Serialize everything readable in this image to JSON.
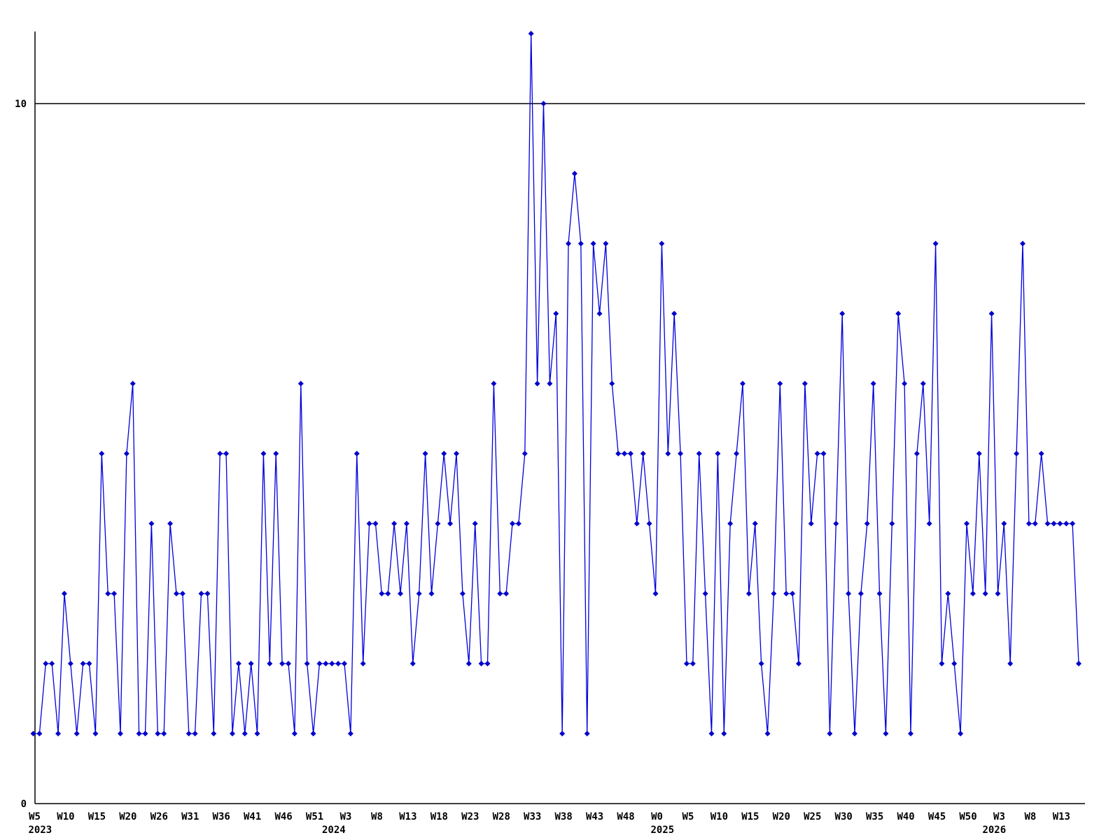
{
  "chart_data": {
    "type": "line",
    "title": "",
    "legend": null,
    "grid": "single horizontal gridline at y=10",
    "legend_position": "none",
    "line_color": "#0000dd",
    "marker_color": "#0000cc",
    "marker_shape": "diamond",
    "axis_color": "#000000",
    "ylim": [
      0,
      11.6
    ],
    "ylabel": "",
    "xlabel": "",
    "y_ticks": [
      {
        "label": "0",
        "value": 0
      },
      {
        "label": "10",
        "value": 10
      }
    ],
    "points_per_tick": 5,
    "x_tick_labels": [
      "W5",
      "W10",
      "W15",
      "W20",
      "W26",
      "W31",
      "W36",
      "W41",
      "W46",
      "W51",
      "W3",
      "W8",
      "W13",
      "W18",
      "W23",
      "W28",
      "W33",
      "W38",
      "W43",
      "W48",
      "W0",
      "W5",
      "W10",
      "W15",
      "W20",
      "W25",
      "W30",
      "W35",
      "W40",
      "W45",
      "W50",
      "W3",
      "W8",
      "W13"
    ],
    "year_labels": [
      {
        "label": "2023",
        "tick_index": 0,
        "dx": -7
      },
      {
        "label": "2024",
        "tick_index": 10,
        "dx": -32
      },
      {
        "label": "2025",
        "tick_index": 20,
        "dx": -7
      },
      {
        "label": "2026",
        "tick_index": 31,
        "dx": -22
      }
    ],
    "values": [
      1,
      1,
      2,
      2,
      1,
      3,
      2,
      1,
      2,
      2,
      1,
      5,
      3,
      3,
      1,
      5,
      6,
      1,
      1,
      4,
      1,
      1,
      4,
      3,
      3,
      1,
      1,
      3,
      3,
      1,
      5,
      5,
      1,
      2,
      1,
      2,
      1,
      5,
      2,
      5,
      2,
      2,
      1,
      6,
      2,
      1,
      2,
      2,
      2,
      2,
      2,
      1,
      5,
      2,
      4,
      4,
      3,
      3,
      4,
      3,
      4,
      2,
      3,
      5,
      3,
      4,
      5,
      4,
      5,
      3,
      2,
      4,
      2,
      2,
      6,
      3,
      3,
      4,
      4,
      5,
      11,
      6,
      10,
      6,
      7,
      1,
      8,
      9,
      8,
      1,
      8,
      7,
      8,
      6,
      5,
      5,
      5,
      4,
      5,
      4,
      3,
      8,
      5,
      7,
      5,
      2,
      2,
      5,
      3,
      1,
      5,
      1,
      4,
      5,
      6,
      3,
      4,
      2,
      1,
      3,
      6,
      3,
      3,
      2,
      6,
      4,
      5,
      5,
      1,
      4,
      7,
      3,
      1,
      3,
      4,
      6,
      3,
      1,
      4,
      7,
      6,
      1,
      5,
      6,
      4,
      8,
      2,
      3,
      2,
      1,
      4,
      3,
      5,
      3,
      7,
      3,
      4,
      2,
      5,
      8,
      4,
      4,
      5,
      4,
      4,
      4,
      4,
      4,
      2
    ]
  }
}
